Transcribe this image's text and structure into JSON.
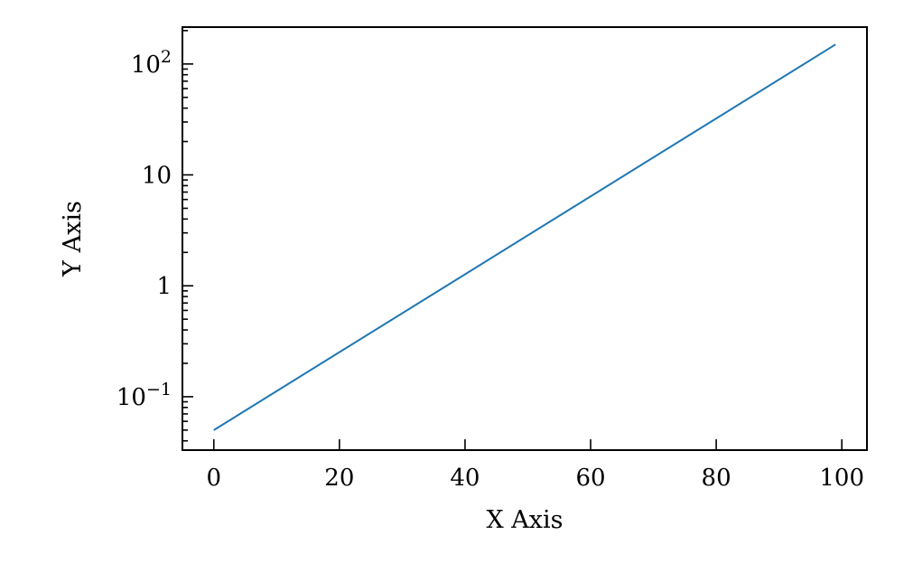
{
  "chart_data": {
    "type": "line",
    "title": "",
    "xlabel": "X Axis",
    "ylabel": "Y Axis",
    "xlim": [
      -5,
      104
    ],
    "ylim": [
      0.033,
      215
    ],
    "xscale": "linear",
    "yscale": "log",
    "grid": false,
    "legend": "none",
    "x_ticks": [
      {
        "value": 0,
        "label": "0"
      },
      {
        "value": 20,
        "label": "20"
      },
      {
        "value": 40,
        "label": "40"
      },
      {
        "value": 60,
        "label": "60"
      },
      {
        "value": 80,
        "label": "80"
      },
      {
        "value": 100,
        "label": "100"
      }
    ],
    "y_ticks": [
      {
        "value": 0.1,
        "base": "10",
        "exponent": "−1"
      },
      {
        "value": 1,
        "base": "1",
        "exponent": ""
      },
      {
        "value": 10,
        "base": "10",
        "exponent": ""
      },
      {
        "value": 100,
        "base": "10",
        "exponent": "2"
      }
    ],
    "series": [
      {
        "color": "#1f77b4",
        "x": [
          0,
          99
        ],
        "y": [
          0.05,
          150
        ]
      }
    ]
  }
}
